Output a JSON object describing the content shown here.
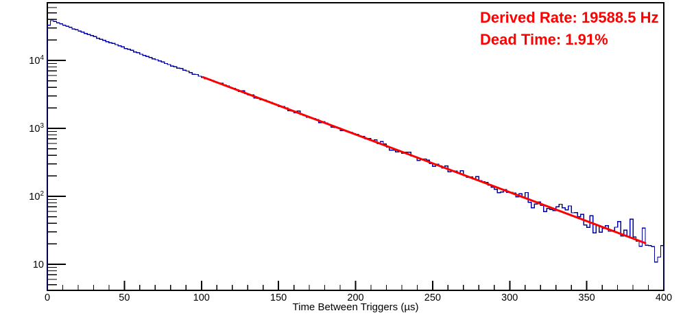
{
  "chart_data": {
    "type": "histogram",
    "title": "",
    "xlabel": "Time Between Triggers (µs)",
    "ylabel": "",
    "y_scale": "log",
    "xlim": [
      0,
      400
    ],
    "ylim": [
      4.1,
      70500
    ],
    "bin_width_us": 2,
    "grid": false,
    "x_ticks": [
      {
        "value": 0,
        "label": "0"
      },
      {
        "value": 50,
        "label": "50"
      },
      {
        "value": 100,
        "label": "100"
      },
      {
        "value": 150,
        "label": "150"
      },
      {
        "value": 200,
        "label": "200"
      },
      {
        "value": 250,
        "label": "250"
      },
      {
        "value": 300,
        "label": "300"
      },
      {
        "value": 350,
        "label": "350"
      },
      {
        "value": 400,
        "label": "400"
      }
    ],
    "x_minor_tick_step": 10,
    "y_ticks": [
      {
        "value": 10,
        "base": "10",
        "exp": ""
      },
      {
        "value": 100,
        "base": "10",
        "exp": "2"
      },
      {
        "value": 1000,
        "base": "10",
        "exp": "3"
      },
      {
        "value": 10000,
        "base": "10",
        "exp": "4"
      }
    ],
    "histogram": {
      "color": "#0000A0",
      "model": {
        "type": "exponential",
        "amplitude": 41000,
        "decay_per_us": 0.0195885
      },
      "sampled_points": [
        [
          1,
          33000
        ],
        [
          3,
          38500
        ],
        [
          5,
          37500
        ],
        [
          10,
          33700
        ],
        [
          20,
          27700
        ],
        [
          30,
          22800
        ],
        [
          40,
          18700
        ],
        [
          50,
          15400
        ],
        [
          60,
          12650
        ],
        [
          70,
          10400
        ],
        [
          80,
          8560
        ],
        [
          90,
          7040
        ],
        [
          100,
          5790
        ],
        [
          120,
          3910
        ],
        [
          140,
          2645
        ],
        [
          160,
          1790
        ],
        [
          180,
          1210
        ],
        [
          200,
          817
        ],
        [
          220,
          552
        ],
        [
          240,
          373
        ],
        [
          260,
          252
        ],
        [
          280,
          171
        ],
        [
          300,
          115
        ],
        [
          320,
          78
        ],
        [
          340,
          53
        ],
        [
          360,
          36
        ],
        [
          380,
          24
        ],
        [
          399,
          16.3
        ]
      ],
      "poisson_noise": true,
      "noise_scale": 1.05,
      "noise_seed": 1337
    },
    "fit": {
      "color": "#FF0000",
      "line_width": 3,
      "range_us": [
        101,
        388
      ],
      "amplitude": 41000,
      "decay_per_us": 0.0195885
    },
    "annotations": [
      {
        "text": "Derived Rate: 19588.5 Hz",
        "color": "#FF0000"
      },
      {
        "text": "Dead Time: 1.91%",
        "color": "#FF0000"
      }
    ],
    "frame_color": "#000000",
    "background_color": "#FFFFFF"
  }
}
